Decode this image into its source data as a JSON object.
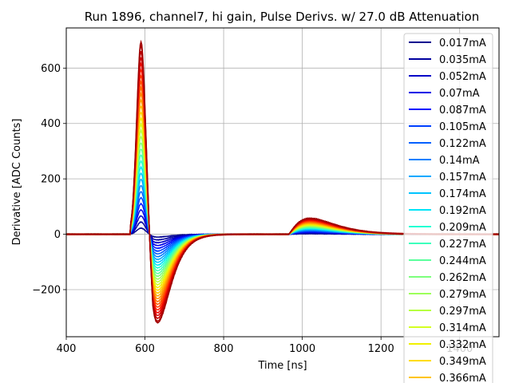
{
  "chart_data": {
    "type": "line",
    "title": "Run 1896, channel7, hi gain, Pulse Derivs. w/ 27.0 dB Attenuation",
    "xlabel": "Time [ns]",
    "ylabel": "Derivative [ADC Counts]",
    "xlim": [
      400,
      1500
    ],
    "ylim": [
      -370,
      745
    ],
    "xticks": [
      400,
      600,
      800,
      1000,
      1200,
      1400
    ],
    "xtick_labels": [
      "400",
      "600",
      "800",
      "1000",
      "1200",
      "1400"
    ],
    "yticks": [
      -200,
      0,
      200,
      400,
      600
    ],
    "ytick_labels": [
      "−200",
      "0",
      "200",
      "400",
      "600"
    ],
    "grid": true,
    "legend_placement": "upper right (extends below plot)",
    "pulse_shape": {
      "main_peak_time": 590,
      "undershoot_time": 655,
      "secondary_peak_time": 1020,
      "max_main_peak": 695,
      "max_undershoot": -320,
      "max_secondary_peak": 58
    },
    "series": [
      {
        "name": "0.017mA",
        "peak": 22,
        "color": "#00008f"
      },
      {
        "name": "0.035mA",
        "peak": 44,
        "color": "#00009f"
      },
      {
        "name": "0.052mA",
        "peak": 66,
        "color": "#0000c8"
      },
      {
        "name": "0.07mA",
        "peak": 88,
        "color": "#0000e6"
      },
      {
        "name": "0.087mA",
        "peak": 110,
        "color": "#0010ff"
      },
      {
        "name": "0.105mA",
        "peak": 132,
        "color": "#0040ff"
      },
      {
        "name": "0.122mA",
        "peak": 154,
        "color": "#0060ff"
      },
      {
        "name": "0.14mA",
        "peak": 176,
        "color": "#0080ff"
      },
      {
        "name": "0.157mA",
        "peak": 198,
        "color": "#00a8ff"
      },
      {
        "name": "0.174mA",
        "peak": 220,
        "color": "#00c4ff"
      },
      {
        "name": "0.192mA",
        "peak": 242,
        "color": "#00e4f8"
      },
      {
        "name": "0.209mA",
        "peak": 264,
        "color": "#22ffd4"
      },
      {
        "name": "0.227mA",
        "peak": 286,
        "color": "#3cffbc"
      },
      {
        "name": "0.244mA",
        "peak": 308,
        "color": "#5aff9c"
      },
      {
        "name": "0.262mA",
        "peak": 330,
        "color": "#7cff7c"
      },
      {
        "name": "0.279mA",
        "peak": 352,
        "color": "#9cff5a"
      },
      {
        "name": "0.297mA",
        "peak": 374,
        "color": "#b6ff40"
      },
      {
        "name": "0.314mA",
        "peak": 396,
        "color": "#d4ff22"
      },
      {
        "name": "0.332mA",
        "peak": 418,
        "color": "#f0f000"
      },
      {
        "name": "0.349mA",
        "peak": 440,
        "color": "#ffdc00"
      },
      {
        "name": "0.366mA",
        "peak": 462,
        "color": "#ffc400"
      }
    ],
    "unlisted_series_peaks": [
      484,
      506,
      528,
      550,
      572,
      594,
      616,
      638,
      660,
      682,
      695
    ],
    "unlisted_series_colors": [
      "#ffa800",
      "#ff9000",
      "#ff7400",
      "#ff5c00",
      "#ff3c00",
      "#ff2400",
      "#f00a00",
      "#d80000",
      "#c40000",
      "#b00000",
      "#a00000"
    ]
  }
}
